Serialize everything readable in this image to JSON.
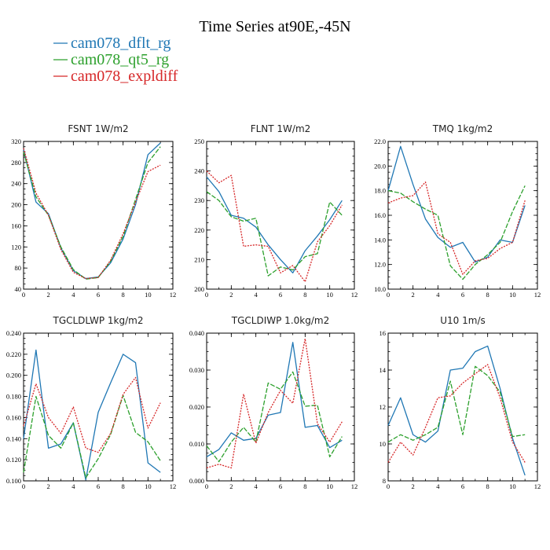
{
  "title": "Time Series at90E,-45N",
  "legend": [
    {
      "label": "cam078_dflt_rg",
      "color": "#1f77b4",
      "dash": ""
    },
    {
      "label": "cam078_qt5_rg",
      "color": "#2ca02c",
      "dash": "6,2"
    },
    {
      "label": "cam078_expldiff",
      "color": "#d62728",
      "dash": "2,1.5"
    }
  ],
  "chart_data": [
    {
      "type": "line",
      "title": "FSNT   1W/m2",
      "x": [
        0,
        1,
        2,
        3,
        4,
        5,
        6,
        7,
        8,
        9,
        10,
        11
      ],
      "xlim": [
        0,
        12
      ],
      "xticks": [
        "0",
        "2",
        "4",
        "6",
        "8",
        "10",
        "12"
      ],
      "ylim": [
        40,
        320
      ],
      "yticks": [
        "40",
        "80",
        "120",
        "160",
        "200",
        "240",
        "280",
        "320"
      ],
      "series": [
        {
          "name": "cam078_dflt_rg",
          "values": [
            305,
            205,
            183,
            118,
            75,
            60,
            63,
            90,
            135,
            200,
            295,
            317
          ]
        },
        {
          "name": "cam078_qt5_rg",
          "values": [
            300,
            215,
            180,
            120,
            77,
            59,
            62,
            93,
            140,
            210,
            280,
            310
          ]
        },
        {
          "name": "cam078_expldiff",
          "values": [
            307,
            222,
            180,
            115,
            72,
            60,
            62,
            95,
            145,
            205,
            263,
            275
          ]
        }
      ]
    },
    {
      "type": "line",
      "title": "FLNT   1W/m2",
      "x": [
        0,
        1,
        2,
        3,
        4,
        5,
        6,
        7,
        8,
        9,
        10,
        11
      ],
      "xlim": [
        0,
        12
      ],
      "xticks": [
        "0",
        "2",
        "4",
        "6",
        "8",
        "10",
        "12"
      ],
      "ylim": [
        200,
        250
      ],
      "yticks": [
        "200",
        "210",
        "220",
        "230",
        "240",
        "250"
      ],
      "series": [
        {
          "name": "cam078_dflt_rg",
          "values": [
            238,
            233,
            225,
            224,
            221,
            215,
            210,
            205.5,
            213,
            218,
            223.5,
            230
          ]
        },
        {
          "name": "cam078_qt5_rg",
          "values": [
            233,
            230,
            224.5,
            223,
            224,
            204.5,
            207.5,
            206.5,
            211,
            212,
            229.5,
            225
          ]
        },
        {
          "name": "cam078_expldiff",
          "values": [
            240,
            236,
            238.5,
            214.5,
            215,
            214.5,
            205.5,
            208,
            202.5,
            216,
            221.5,
            228.5
          ]
        }
      ]
    },
    {
      "type": "line",
      "title": "TMQ   1kg/m2",
      "x": [
        0,
        1,
        2,
        3,
        4,
        5,
        6,
        7,
        8,
        9,
        10,
        11
      ],
      "xlim": [
        0,
        12
      ],
      "xticks": [
        "0",
        "2",
        "4",
        "6",
        "8",
        "10",
        "12"
      ],
      "ylim": [
        10,
        22
      ],
      "yticks": [
        "10.0",
        "12.0",
        "14.0",
        "16.0",
        "18.0",
        "20.0",
        "22.0"
      ],
      "series": [
        {
          "name": "cam078_dflt_rg",
          "values": [
            18,
            21.6,
            18.5,
            15.7,
            14.2,
            13.4,
            13.8,
            12.2,
            12.6,
            14,
            13.8,
            16.8
          ]
        },
        {
          "name": "cam078_qt5_rg",
          "values": [
            18,
            17.8,
            17.1,
            16.5,
            16,
            11.9,
            10.8,
            12,
            12.8,
            13.8,
            16.3,
            18.4
          ]
        },
        {
          "name": "cam078_expldiff",
          "values": [
            17,
            17.4,
            17.6,
            18.7,
            14.5,
            13.8,
            11.2,
            12.3,
            12.5,
            13.3,
            13.8,
            17.2
          ]
        }
      ]
    },
    {
      "type": "line",
      "title": "TGCLDLWP   1kg/m2",
      "x": [
        0,
        1,
        2,
        3,
        4,
        5,
        6,
        7,
        8,
        9,
        10,
        11
      ],
      "xlim": [
        0,
        12
      ],
      "xticks": [
        "0",
        "2",
        "4",
        "6",
        "8",
        "10",
        "12"
      ],
      "ylim": [
        0.1,
        0.24
      ],
      "yticks": [
        "0.100",
        "0.120",
        "0.140",
        "0.160",
        "0.180",
        "0.200",
        "0.220",
        "0.240"
      ],
      "series": [
        {
          "name": "cam078_dflt_rg",
          "values": [
            0.14,
            0.224,
            0.131,
            0.135,
            0.155,
            0.101,
            0.165,
            0.193,
            0.22,
            0.212,
            0.117,
            0.108
          ]
        },
        {
          "name": "cam078_qt5_rg",
          "values": [
            0.108,
            0.18,
            0.143,
            0.131,
            0.155,
            0.103,
            0.121,
            0.144,
            0.181,
            0.146,
            0.137,
            0.119
          ]
        },
        {
          "name": "cam078_expldiff",
          "values": [
            0.152,
            0.192,
            0.16,
            0.145,
            0.17,
            0.131,
            0.127,
            0.145,
            0.182,
            0.198,
            0.15,
            0.174
          ]
        }
      ]
    },
    {
      "type": "line",
      "title": "TGCLDIWP   1.0kg/m2",
      "x": [
        0,
        1,
        2,
        3,
        4,
        5,
        6,
        7,
        8,
        9,
        10,
        11
      ],
      "xlim": [
        0,
        12
      ],
      "xticks": [
        "0",
        "2",
        "4",
        "6",
        "8",
        "10",
        "12"
      ],
      "ylim": [
        0,
        0.04
      ],
      "yticks": [
        "0.000",
        "0.010",
        "0.020",
        "0.030",
        "0.040"
      ],
      "series": [
        {
          "name": "cam078_dflt_rg",
          "values": [
            0.0065,
            0.0085,
            0.013,
            0.011,
            0.0115,
            0.0178,
            0.0185,
            0.0375,
            0.0145,
            0.015,
            0.009,
            0.011
          ]
        },
        {
          "name": "cam078_qt5_rg",
          "values": [
            0.0095,
            0.0052,
            0.0105,
            0.0145,
            0.0105,
            0.0265,
            0.0248,
            0.0295,
            0.0202,
            0.0205,
            0.0065,
            0.012
          ]
        },
        {
          "name": "cam078_expldiff",
          "values": [
            0.0035,
            0.0045,
            0.0035,
            0.0235,
            0.0102,
            0.0185,
            0.0245,
            0.021,
            0.0385,
            0.0155,
            0.0105,
            0.016
          ]
        }
      ]
    },
    {
      "type": "line",
      "title": "U10   1m/s",
      "x": [
        0,
        1,
        2,
        3,
        4,
        5,
        6,
        7,
        8,
        9,
        10,
        11
      ],
      "xlim": [
        0,
        12
      ],
      "xticks": [
        "0",
        "2",
        "4",
        "6",
        "8",
        "10",
        "12"
      ],
      "ylim": [
        8,
        16
      ],
      "yticks": [
        "8",
        "10",
        "12",
        "14",
        "16"
      ],
      "series": [
        {
          "name": "cam078_dflt_rg",
          "values": [
            11,
            12.5,
            10.5,
            10.1,
            10.7,
            14,
            14.1,
            15,
            15.3,
            13,
            10.3,
            8.3
          ]
        },
        {
          "name": "cam078_qt5_rg",
          "values": [
            10.1,
            10.5,
            10.2,
            10.5,
            10.9,
            13.4,
            10.5,
            14.2,
            13.7,
            12.8,
            10.4,
            10.5
          ]
        },
        {
          "name": "cam078_expldiff",
          "values": [
            9,
            10.1,
            9.4,
            10.9,
            12.5,
            12.6,
            13.3,
            13.8,
            14.3,
            12.5,
            10.1,
            9
          ]
        }
      ]
    }
  ]
}
